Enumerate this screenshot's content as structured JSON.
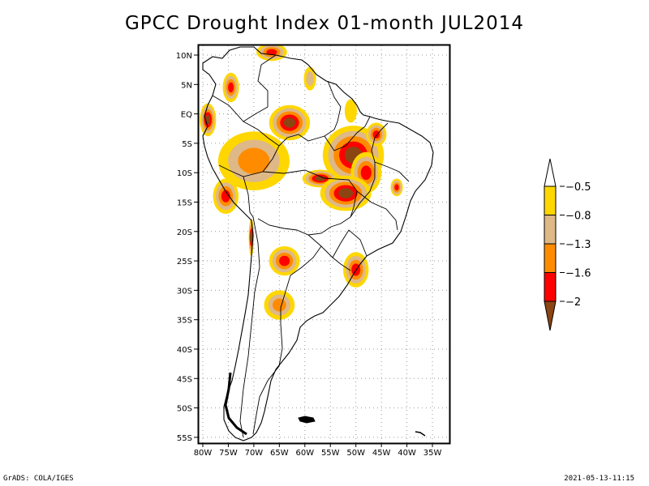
{
  "title": "GPCC Drought Index 01-month JUL2014",
  "footer": {
    "left": "GrADS: COLA/IGES",
    "right": "2021-05-13-11:15"
  },
  "map": {
    "region": "South America",
    "lon_range": [
      -81,
      -32
    ],
    "lat_range": [
      -56,
      12
    ],
    "lon_ticks": [
      {
        "value": -80,
        "label": "80W"
      },
      {
        "value": -75,
        "label": "75W"
      },
      {
        "value": -70,
        "label": "70W"
      },
      {
        "value": -65,
        "label": "65W"
      },
      {
        "value": -60,
        "label": "60W"
      },
      {
        "value": -55,
        "label": "55W"
      },
      {
        "value": -50,
        "label": "50W"
      },
      {
        "value": -45,
        "label": "45W"
      },
      {
        "value": -40,
        "label": "40W"
      },
      {
        "value": -35,
        "label": "35W"
      }
    ],
    "lat_ticks": [
      {
        "value": 10,
        "label": "10N"
      },
      {
        "value": 5,
        "label": "5N"
      },
      {
        "value": 0,
        "label": "EQ"
      },
      {
        "value": -5,
        "label": "5S"
      },
      {
        "value": -10,
        "label": "10S"
      },
      {
        "value": -15,
        "label": "15S"
      },
      {
        "value": -20,
        "label": "20S"
      },
      {
        "value": -25,
        "label": "25S"
      },
      {
        "value": -30,
        "label": "30S"
      },
      {
        "value": -35,
        "label": "35S"
      },
      {
        "value": -40,
        "label": "40S"
      },
      {
        "value": -45,
        "label": "45S"
      },
      {
        "value": -50,
        "label": "50S"
      },
      {
        "value": -55,
        "label": "55S"
      }
    ],
    "grid": "dotted"
  },
  "colorbar": {
    "orientation": "vertical",
    "levels": [
      {
        "label": "-0.5",
        "value": -0.5
      },
      {
        "label": "-0.8",
        "value": -0.8
      },
      {
        "label": "-1.3",
        "value": -1.3
      },
      {
        "label": "-1.6",
        "value": -1.6
      },
      {
        "label": "-2",
        "value": -2
      }
    ],
    "colors": [
      {
        "range": "> -0.5",
        "hex": "#ffffff"
      },
      {
        "range": "-0.8 to -0.5",
        "hex": "#ffd700"
      },
      {
        "range": "-1.3 to -0.8",
        "hex": "#deb887"
      },
      {
        "range": "-1.6 to -1.3",
        "hex": "#ff8c00"
      },
      {
        "range": "-2 to -1.6",
        "hex": "#ff0000"
      },
      {
        "range": "< -2",
        "hex": "#8b4513"
      }
    ]
  },
  "drought_regions": [
    {
      "name": "northern-colombia",
      "lon": -66.5,
      "lat": 10.5,
      "rx": 3,
      "ry": 1.5,
      "max_class": 4
    },
    {
      "name": "colombia-west",
      "lon": -74.5,
      "lat": 4.5,
      "rx": 1.6,
      "ry": 2.5,
      "max_class": 4
    },
    {
      "name": "ecuador-coast",
      "lon": -79,
      "lat": -1,
      "rx": 1.6,
      "ry": 2.8,
      "max_class": 5
    },
    {
      "name": "guyana-coast",
      "lon": -59,
      "lat": 6,
      "rx": 1.2,
      "ry": 2,
      "max_class": 2
    },
    {
      "name": "rio-negro",
      "lon": -63,
      "lat": -1.5,
      "rx": 4,
      "ry": 3,
      "max_class": 5
    },
    {
      "name": "amapa",
      "lon": -51,
      "lat": 0.5,
      "rx": 1.2,
      "ry": 2,
      "max_class": 1
    },
    {
      "name": "western-amazon",
      "lon": -70,
      "lat": -8,
      "rx": 7,
      "ry": 5,
      "max_class": 3
    },
    {
      "name": "central-amazon-para",
      "lon": -50.5,
      "lat": -7,
      "rx": 6,
      "ry": 5,
      "max_class": 5
    },
    {
      "name": "maranhao",
      "lon": -46,
      "lat": -3.5,
      "rx": 2,
      "ry": 2,
      "max_class": 4
    },
    {
      "name": "tocantins",
      "lon": -48,
      "lat": -10,
      "rx": 3,
      "ry": 3.5,
      "max_class": 4
    },
    {
      "name": "rondonia-mato-grosso",
      "lon": -57,
      "lat": -11,
      "rx": 3.5,
      "ry": 1.5,
      "max_class": 5
    },
    {
      "name": "goias",
      "lon": -52,
      "lat": -13.5,
      "rx": 5,
      "ry": 3,
      "max_class": 5
    },
    {
      "name": "bahia-east",
      "lon": -42,
      "lat": -12.5,
      "rx": 1.2,
      "ry": 1.5,
      "max_class": 4
    },
    {
      "name": "peru-south",
      "lon": -75.5,
      "lat": -14,
      "rx": 2.5,
      "ry": 3,
      "max_class": 4
    },
    {
      "name": "chile-atacama",
      "lon": -70.5,
      "lat": -21,
      "rx": 0.5,
      "ry": 3.2,
      "max_class": 5
    },
    {
      "name": "northwest-argentina",
      "lon": -64,
      "lat": -25,
      "rx": 3,
      "ry": 2.5,
      "max_class": 4
    },
    {
      "name": "santa-catarina",
      "lon": -50,
      "lat": -26.5,
      "rx": 2.5,
      "ry": 3,
      "max_class": 4
    },
    {
      "name": "cordoba-argentina",
      "lon": -65,
      "lat": -32.5,
      "rx": 3,
      "ry": 2.5,
      "max_class": 3
    }
  ]
}
